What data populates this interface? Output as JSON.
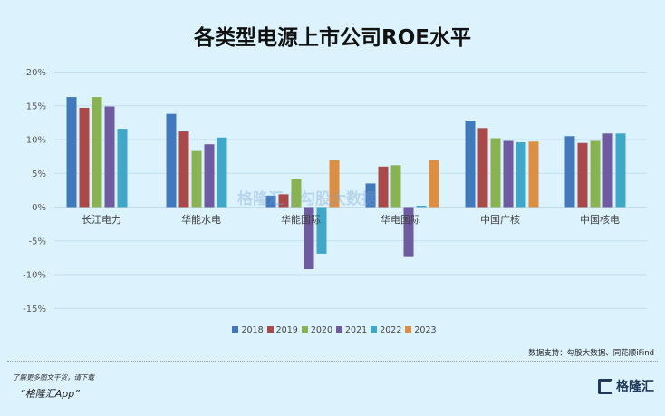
{
  "chart_data": {
    "type": "bar",
    "title": "各类型电源上市公司ROE水平",
    "categories": [
      "长江电力",
      "华能水电",
      "华能国际",
      "华电国际",
      "中国广核",
      "中国核电"
    ],
    "yticks": [
      "20%",
      "15%",
      "10%",
      "5%",
      "0%",
      "-5%",
      "-10%",
      "-15%"
    ],
    "ylim": [
      -15,
      20
    ],
    "grid": true,
    "legend_position": "bottom",
    "series": [
      {
        "name": "2018",
        "color": "#4279bd",
        "values": [
          16.3,
          13.8,
          1.7,
          3.5,
          12.8,
          10.5
        ]
      },
      {
        "name": "2019",
        "color": "#a94a4a",
        "values": [
          14.7,
          11.2,
          1.9,
          6.0,
          11.7,
          9.5
        ]
      },
      {
        "name": "2020",
        "color": "#89b353",
        "values": [
          16.3,
          8.3,
          4.1,
          6.2,
          10.2,
          9.8
        ]
      },
      {
        "name": "2021",
        "color": "#6f5ba0",
        "values": [
          14.9,
          9.3,
          -9.2,
          -7.4,
          9.8,
          10.9
        ]
      },
      {
        "name": "2022",
        "color": "#3fa8c8",
        "values": [
          11.6,
          10.3,
          -6.9,
          0.2,
          9.6,
          10.9
        ]
      },
      {
        "name": "2023",
        "color": "#dc8f42",
        "values": [
          null,
          null,
          7.0,
          7.0,
          9.7,
          null
        ]
      }
    ]
  },
  "watermark": "格隆汇 | 勾股大数据",
  "source": "数据支持：勾股大数据、同花顺iFind",
  "footer": {
    "note": "了解更多图文干货，请下载",
    "app": "“格隆汇App”",
    "logo": "格隆汇"
  }
}
